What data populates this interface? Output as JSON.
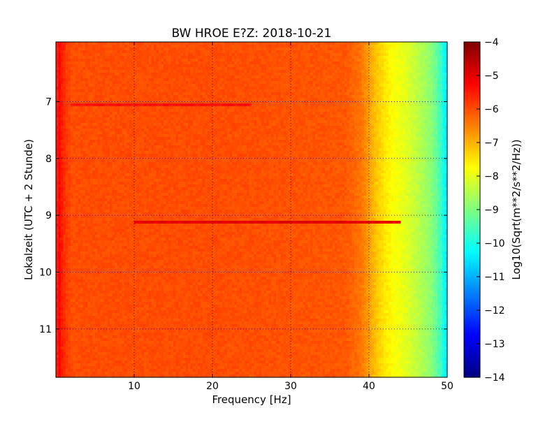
{
  "chart_data": {
    "type": "heatmap",
    "title": "BW HROE E?Z: 2018-10-21",
    "xlabel": "Frequency [Hz]",
    "ylabel": "Lokalzeit (UTC + 2 Stunde)",
    "colorbar_label": "Log10(Sqrt(m**2/s**2/Hz))",
    "xlim": [
      0,
      50
    ],
    "ylim": [
      5.95,
      11.85
    ],
    "y_inverted": true,
    "xticks": [
      10,
      20,
      30,
      40,
      50
    ],
    "xtick_labels": [
      "10",
      "20",
      "30",
      "40",
      "50"
    ],
    "yticks": [
      7,
      8,
      9,
      10,
      11
    ],
    "ytick_labels": [
      "7",
      "8",
      "9",
      "10",
      "11"
    ],
    "clim": [
      -14,
      -4
    ],
    "cticks": [
      -14,
      -13,
      -12,
      -11,
      -10,
      -9,
      -8,
      -7,
      -6,
      -5,
      -4
    ],
    "ctick_labels": [
      "−14",
      "−13",
      "−12",
      "−11",
      "−10",
      "−9",
      "−8",
      "−7",
      "−6",
      "−5",
      "−4"
    ],
    "colormap": "jet",
    "grid": true,
    "grid_style": "dotted",
    "spectrum_profile": {
      "frequency_hz": [
        0.0,
        0.5,
        1.0,
        2.0,
        5.0,
        10.0,
        20.0,
        30.0,
        37.0,
        39.0,
        40.0,
        41.0,
        42.0,
        43.0,
        44.0,
        45.0,
        46.0,
        47.0,
        48.0,
        49.0,
        50.0
      ],
      "log10_amplitude": [
        -5.6,
        -5.3,
        -5.7,
        -6.0,
        -6.0,
        -6.0,
        -6.0,
        -6.05,
        -6.1,
        -6.4,
        -6.8,
        -7.2,
        -7.5,
        -7.75,
        -7.9,
        -8.1,
        -8.35,
        -8.6,
        -8.9,
        -9.5,
        -10.5
      ]
    },
    "bright_bands": [
      {
        "time_h": 7.05,
        "freq_range_hz": [
          2,
          25
        ],
        "log10_amplitude": -5.4
      },
      {
        "time_h": 9.13,
        "freq_range_hz": [
          10,
          44
        ],
        "log10_amplitude": -5.0
      }
    ]
  }
}
